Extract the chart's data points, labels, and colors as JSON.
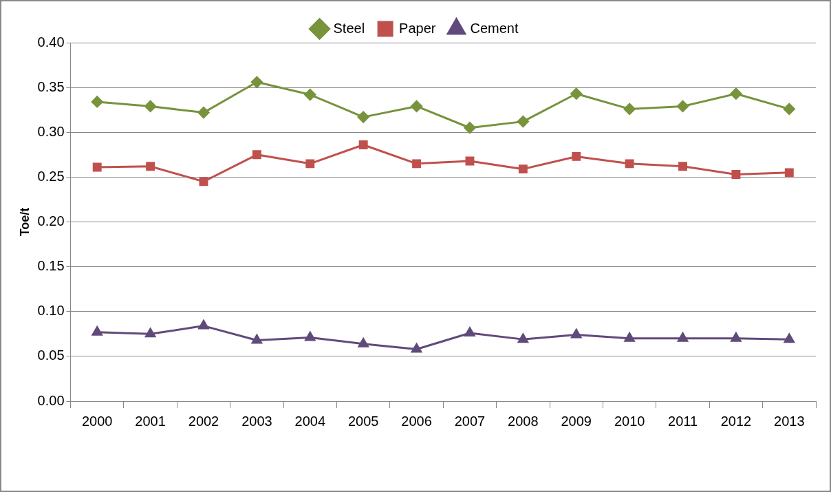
{
  "chart_data": {
    "type": "line",
    "ylabel": "Toe/t",
    "categories": [
      "2000",
      "2001",
      "2002",
      "2003",
      "2004",
      "2005",
      "2006",
      "2007",
      "2008",
      "2009",
      "2010",
      "2011",
      "2012",
      "2013"
    ],
    "series": [
      {
        "name": "Steel",
        "color": "#77933c",
        "marker": "diamond",
        "values": [
          0.334,
          0.329,
          0.322,
          0.356,
          0.342,
          0.317,
          0.329,
          0.305,
          0.312,
          0.343,
          0.326,
          0.329,
          0.343,
          0.326
        ]
      },
      {
        "name": "Paper",
        "color": "#c0504d",
        "marker": "square",
        "values": [
          0.261,
          0.262,
          0.245,
          0.275,
          0.265,
          0.286,
          0.265,
          0.268,
          0.259,
          0.273,
          0.265,
          0.262,
          0.253,
          0.255
        ]
      },
      {
        "name": "Cement",
        "color": "#604a7b",
        "marker": "triangle",
        "values": [
          0.077,
          0.075,
          0.084,
          0.068,
          0.071,
          0.064,
          0.058,
          0.076,
          0.069,
          0.074,
          0.07,
          0.07,
          0.07,
          0.069
        ]
      }
    ],
    "ylim": [
      0,
      0.4
    ],
    "yticks": [
      {
        "value": 0,
        "label": "0.00"
      },
      {
        "value": 0.05,
        "label": "0.05"
      },
      {
        "value": 0.1,
        "label": "0.10"
      },
      {
        "value": 0.15,
        "label": "0.15"
      },
      {
        "value": 0.2,
        "label": "0.20"
      },
      {
        "value": 0.25,
        "label": "0.25"
      },
      {
        "value": 0.3,
        "label": "0.30"
      },
      {
        "value": 0.35,
        "label": "0.35"
      },
      {
        "value": 0.4,
        "label": "0.40"
      }
    ],
    "grid": "y",
    "legend": "top",
    "line_style": "solid"
  }
}
